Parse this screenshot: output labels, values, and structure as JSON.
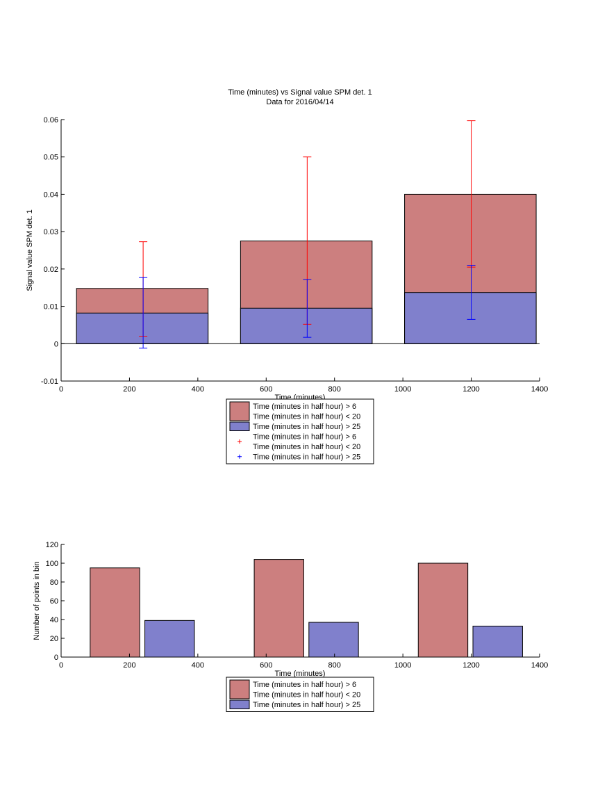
{
  "chart_data": [
    {
      "type": "bar",
      "title": "Time (minutes) vs Signal value SPM det. 1",
      "subtitle": "Data for 2016/04/14",
      "xlabel": "Time (minutes)",
      "ylabel": "Signal value SPM det. 1",
      "xlim": [
        0,
        1400
      ],
      "ylim": [
        -0.01,
        0.06
      ],
      "xticks": [
        "0",
        "200",
        "400",
        "600",
        "800",
        "1000",
        "1200",
        "1400"
      ],
      "yticks": [
        "-0.01",
        "0",
        "0.01",
        "0.02",
        "0.03",
        "0.04",
        "0.05",
        "0.06"
      ],
      "grid": false,
      "legend_position": "below",
      "bar_groups": [
        {
          "x_range": [
            45,
            430
          ]
        },
        {
          "x_range": [
            525,
            910
          ]
        },
        {
          "x_range": [
            1005,
            1390
          ]
        }
      ],
      "series": [
        {
          "name_lines": [
            "Time (minutes in half hour) > 6",
            "Time (minutes in half hour) < 20"
          ],
          "color": "#cc7f7f",
          "values": [
            0.0148,
            0.0275,
            0.04
          ]
        },
        {
          "name_lines": [
            "Time (minutes in half hour) > 25"
          ],
          "color": "#8080cc",
          "values": [
            0.0082,
            0.0095,
            0.0137
          ]
        }
      ],
      "error_bars": [
        {
          "name_lines": [
            "Time (minutes in half hour) > 6",
            "Time (minutes in half hour) < 20"
          ],
          "color": "#ff0000",
          "x": [
            240,
            720,
            1200
          ],
          "y": [
            0.0147,
            0.0275,
            0.0405
          ],
          "lower": [
            0.002,
            0.0052,
            0.0205
          ],
          "upper": [
            0.0273,
            0.05,
            0.0597
          ]
        },
        {
          "name_lines": [
            "Time (minutes in half hour) > 25"
          ],
          "color": "#0000ff",
          "x": [
            240,
            720,
            1200
          ],
          "y": [
            0.0082,
            0.0095,
            0.0137
          ],
          "lower": [
            -0.0012,
            0.0017,
            0.0065
          ],
          "upper": [
            0.0177,
            0.0172,
            0.021
          ]
        }
      ]
    },
    {
      "type": "bar",
      "title": "",
      "xlabel": "Time (minutes)",
      "ylabel": "Number of points in bin",
      "xlim": [
        0,
        1400
      ],
      "ylim": [
        0,
        120
      ],
      "xticks": [
        "0",
        "200",
        "400",
        "600",
        "800",
        "1000",
        "1200",
        "1400"
      ],
      "yticks": [
        "0",
        "20",
        "40",
        "60",
        "80",
        "100",
        "120"
      ],
      "grid": false,
      "legend_position": "below",
      "series": [
        {
          "name_lines": [
            "Time (minutes in half hour) > 6",
            "Time (minutes in half hour) < 20"
          ],
          "color": "#cc7f7f",
          "x_ranges": [
            [
              85,
              230
            ],
            [
              565,
              710
            ],
            [
              1045,
              1190
            ]
          ],
          "values": [
            95,
            104,
            100
          ]
        },
        {
          "name_lines": [
            "Time (minutes in half hour) > 25"
          ],
          "color": "#8080cc",
          "x_ranges": [
            [
              245,
              390
            ],
            [
              725,
              870
            ],
            [
              1205,
              1350
            ]
          ],
          "values": [
            39,
            37,
            33
          ]
        }
      ]
    }
  ]
}
